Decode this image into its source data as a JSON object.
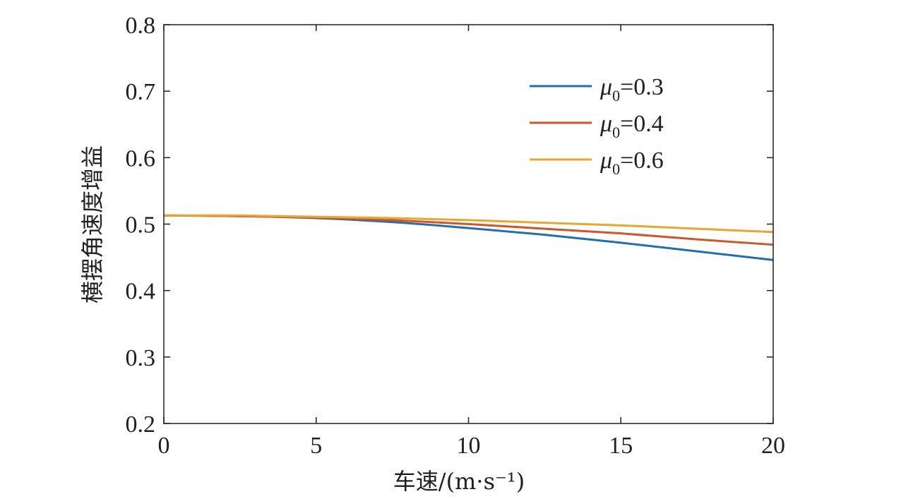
{
  "chart_data": {
    "type": "line",
    "xlabel": "车速/(m·s⁻¹)",
    "ylabel": "横摆角速度增益",
    "xlim": [
      0,
      20
    ],
    "ylim": [
      0.2,
      0.8
    ],
    "x_ticks": [
      0,
      5,
      10,
      15,
      20
    ],
    "x_tick_labels": [
      "0",
      "5",
      "10",
      "15",
      "20"
    ],
    "y_ticks": [
      0.2,
      0.3,
      0.4,
      0.5,
      0.6,
      0.7,
      0.8
    ],
    "y_tick_labels": [
      "0.2",
      "0.3",
      "0.4",
      "0.5",
      "0.6",
      "0.7",
      "0.8"
    ],
    "grid": false,
    "legend_position": "top-right",
    "x": [
      0,
      2.5,
      5,
      7.5,
      10,
      12.5,
      15,
      17.5,
      20
    ],
    "series": [
      {
        "name": "μ0=0.3",
        "legend_prefix": "μ",
        "legend_subscript": "0",
        "legend_suffix": "=0.3",
        "color": "#1f6fb2",
        "values": [
          0.513,
          0.512,
          0.509,
          0.503,
          0.494,
          0.484,
          0.472,
          0.459,
          0.446
        ]
      },
      {
        "name": "μ0=0.4",
        "legend_prefix": "μ",
        "legend_subscript": "0",
        "legend_suffix": "=0.4",
        "color": "#d2552a",
        "values": [
          0.513,
          0.512,
          0.51,
          0.506,
          0.5,
          0.493,
          0.486,
          0.477,
          0.469
        ]
      },
      {
        "name": "μ0=0.6",
        "legend_prefix": "μ",
        "legend_subscript": "0",
        "legend_suffix": "=0.6",
        "color": "#eaa72a",
        "values": [
          0.513,
          0.513,
          0.511,
          0.509,
          0.506,
          0.502,
          0.498,
          0.493,
          0.488
        ]
      }
    ]
  }
}
